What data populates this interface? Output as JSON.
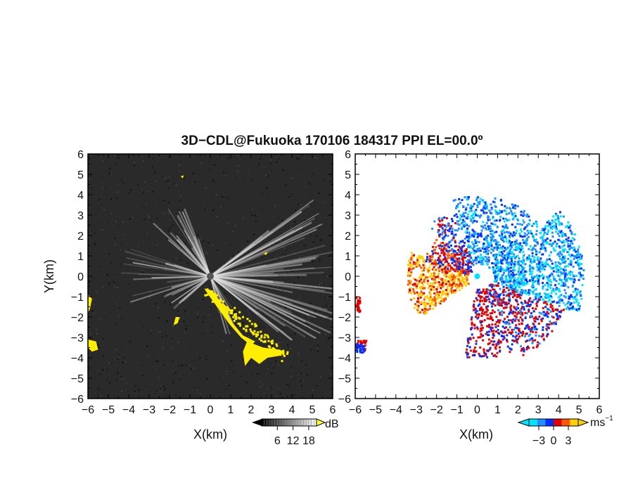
{
  "chart_data": {
    "title": "3D−CDL@Fukuoka 170106 184317 PPI EL=00.0º",
    "panels": [
      {
        "type": "heatmap",
        "name": "reflectivity",
        "xlabel": "X(km)",
        "ylabel": "Y(km)",
        "xlim": [
          -6,
          6
        ],
        "ylim": [
          -6,
          6
        ],
        "xticks": [
          "−6",
          "−5",
          "−4",
          "−3",
          "−2",
          "−1",
          "0",
          "1",
          "2",
          "3",
          "4",
          "5",
          "6"
        ],
        "yticks": [
          "6",
          "5",
          "4",
          "3",
          "2",
          "1",
          "0",
          "−1",
          "−2",
          "−3",
          "−4",
          "−5",
          "−6"
        ],
        "background_color": "#2a2a2a",
        "highlight_color": "#ffee00",
        "colorbar": {
          "unit": "dB",
          "ticks": [
            "6",
            "12",
            "18"
          ],
          "range": [
            0,
            21
          ],
          "colors": [
            "#000000",
            "#ffffff"
          ]
        }
      },
      {
        "type": "heatmap",
        "name": "doppler-velocity",
        "xlabel": "X(km)",
        "xlim": [
          -6,
          6
        ],
        "ylim": [
          -6,
          6
        ],
        "xticks": [
          "−6",
          "−5",
          "−4",
          "−3",
          "−2",
          "−1",
          "0",
          "1",
          "2",
          "3",
          "4",
          "5",
          "6"
        ],
        "yticks": [
          "6",
          "5",
          "4",
          "3",
          "2",
          "1",
          "0",
          "−1",
          "−2",
          "−3",
          "−4",
          "−5",
          "−6"
        ],
        "colorbar": {
          "unit": "ms",
          "unit_exponent": "−1",
          "ticks": [
            "−3",
            "0",
            "3"
          ],
          "range": [
            -5,
            5
          ],
          "colors": [
            "#00e5ff",
            "#1e90ff",
            "#0030ff",
            "#e00000",
            "#ff5500",
            "#ffd000"
          ]
        }
      }
    ]
  }
}
